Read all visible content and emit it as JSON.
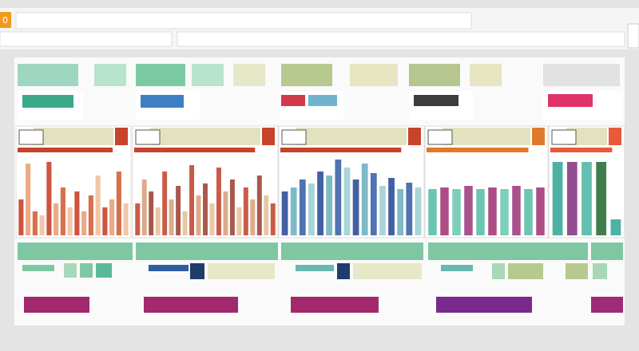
{
  "header": {
    "badge": "0"
  },
  "panels": [
    {
      "ylim": [
        0,
        100
      ],
      "colors": [
        "#c8432b",
        "#e8a07a",
        "#d2613a",
        "#f0c0a0"
      ],
      "values": [
        45,
        90,
        30,
        25,
        92,
        40,
        60,
        35,
        55,
        30,
        50,
        75,
        35,
        45,
        80,
        40
      ]
    },
    {
      "ylim": [
        0,
        100
      ],
      "colors": [
        "#c24a35",
        "#d9a27e",
        "#a0463a",
        "#e6c29a"
      ],
      "values": [
        40,
        70,
        55,
        35,
        80,
        45,
        62,
        30,
        88,
        50,
        65,
        40,
        85,
        55,
        70,
        35,
        60,
        45,
        75,
        50,
        40
      ]
    },
    {
      "ylim": [
        0,
        100
      ],
      "colors": [
        "#2f4f9a",
        "#6fb3c0",
        "#3c64a8",
        "#9fd0d3"
      ],
      "values": [
        55,
        60,
        70,
        65,
        80,
        75,
        95,
        85,
        70,
        90,
        78,
        62,
        72,
        58,
        66,
        60
      ]
    },
    {
      "ylim": [
        0,
        100
      ],
      "colors": [
        "#5bbfa8",
        "#a33a78",
        "#6fcab4",
        "#9f3f80"
      ],
      "values": [
        58,
        60,
        58,
        62,
        58,
        60,
        58,
        62,
        58,
        60
      ]
    },
    {
      "ylim": [
        0,
        100
      ],
      "colors": [
        "#3aa89a",
        "#8a3a86",
        "#52b8a8",
        "#2a6f3a"
      ],
      "values": [
        92,
        92,
        92,
        92,
        20
      ]
    }
  ]
}
